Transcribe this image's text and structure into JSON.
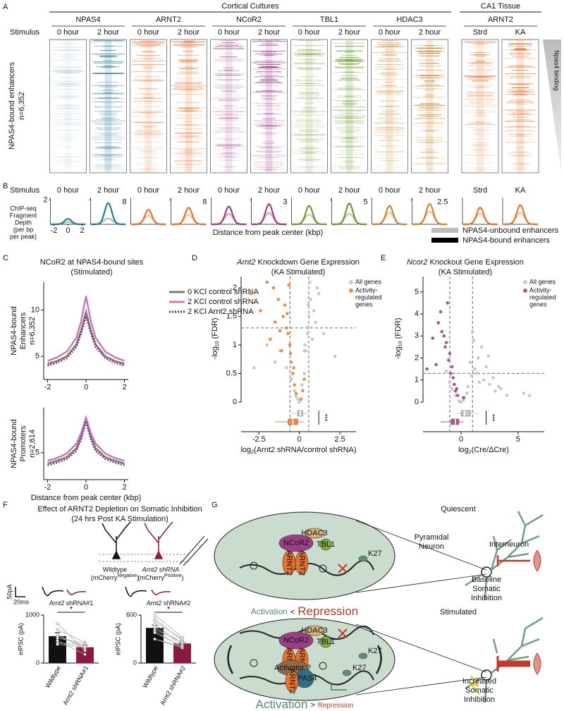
{
  "figure": {
    "panel_letters": [
      "A",
      "B",
      "C",
      "D",
      "E",
      "F",
      "G"
    ],
    "panel_a": {
      "cortical_title": "Cortical Cultures",
      "tissue_title": "CA1 Tissue",
      "factors": [
        "NPAS4",
        "ARNT2",
        "NCoR2",
        "TBL1",
        "HDAC3",
        "ARNT2"
      ],
      "colors": [
        "#2b7b93",
        "#e8732a",
        "#9a3f86",
        "#6c9b2c",
        "#c9862f",
        "#e8732a"
      ],
      "stimulus_label": "Stimulus",
      "columns": [
        "0 hour",
        "2 hour",
        "0 hour",
        "2 hour",
        "0 hour",
        "2 hour",
        "0 hour",
        "2 hour",
        "0 hour",
        "2 hour",
        "Strd",
        "KA"
      ],
      "row_label": "NPAS4-bound enhancers",
      "row_count": "n=6,352",
      "gradient_label": "Npas4 binding"
    },
    "panel_f": {
      "title": "Effect of ARNT2 Depletion on Somatic Inhibition",
      "subtitle": "(24 hrs Post KA Stimulation)",
      "wildtype": "Wildtype",
      "wildtype_marker": [
        "(mCherry",
        "Negative",
        ")"
      ],
      "shrna": "Arnt2 shRNA",
      "shrna_marker": [
        "(mCherry",
        "Positive",
        ")"
      ],
      "scale_y": "50pA",
      "scale_x": "20ms"
    },
    "panel_g": {
      "quiescent": "Quiescent",
      "stimulated": "Stimulated",
      "pyramidal": [
        "Pyramidal",
        "Neuron"
      ],
      "interneuron": "Interneuron",
      "baseline": [
        "Baseline",
        "Somatic",
        "Inhibition"
      ],
      "increased": [
        "Increased",
        "Somatic",
        "Inhibition"
      ],
      "activation": "Activation",
      "less": "<",
      "greater": ">",
      "repression": "Repression",
      "proteins": {
        "hdac3": "HDAC3",
        "ncor2": "NCoR2",
        "tbl1": "TBL1",
        "arnt2": "ARNT2",
        "k27": "K27",
        "npas4": "NPAS4",
        "activator": "Activator ?"
      }
    }
  },
  "chart_data": [
    {
      "type": "line",
      "title": "NCoR2 at NPAS4-bound sites",
      "subtitle": "(Stimulated)",
      "ylabel": [
        "NPAS4-bound",
        "Enhancers",
        "n=6,352"
      ],
      "x": [
        -2,
        -1.5,
        -1,
        -0.5,
        -0.25,
        0,
        0.25,
        0.5,
        1,
        1.5,
        2
      ],
      "xlim": [
        -2.2,
        2.2
      ],
      "xticks": [
        -2,
        0,
        2
      ],
      "ylim": [
        2.5,
        13
      ],
      "yticks": [
        5,
        10
      ],
      "series": [
        {
          "name": "0 KCl control shRNA",
          "color": "#7a7a7a",
          "style": "solid",
          "values": [
            4.2,
            4.5,
            5,
            6.3,
            7.8,
            9.8,
            7.8,
            6.3,
            5,
            4.5,
            4.2
          ]
        },
        {
          "name": "2 KCl control shRNA",
          "color": "#c77bb5",
          "style": "solid",
          "values": [
            4.5,
            4.9,
            5.5,
            7,
            8.8,
            11.5,
            8.8,
            7,
            5.5,
            4.9,
            4.5
          ]
        },
        {
          "name": "2 KCl Arnt2 shRNA",
          "color": "#7e2f70",
          "style": "dotted",
          "values": [
            4,
            4.3,
            4.8,
            6,
            7.5,
            9.3,
            7.5,
            6,
            4.8,
            4.3,
            4
          ]
        }
      ]
    },
    {
      "type": "line",
      "ylabel": [
        "NPAS4-bound",
        "Promoters",
        "n=2,614"
      ],
      "xlabel": "Distance from peak center (kbp)",
      "x": [
        -2,
        -1.5,
        -1,
        -0.5,
        -0.25,
        0,
        0.25,
        0.5,
        1,
        1.5,
        2
      ],
      "xlim": [
        -2.2,
        2.2
      ],
      "xticks": [
        -2,
        0,
        2
      ],
      "ylim": [
        2,
        10
      ],
      "yticks": [
        5
      ],
      "series": [
        {
          "color": "#7a7a7a",
          "style": "solid",
          "values": [
            3.8,
            4.1,
            4.5,
            5.5,
            6.8,
            8.7,
            6.8,
            5.5,
            4.5,
            4.1,
            3.8
          ]
        },
        {
          "color": "#c77bb5",
          "style": "solid",
          "values": [
            4.1,
            4.4,
            4.9,
            6,
            7.2,
            8.9,
            7.2,
            6,
            4.9,
            4.4,
            4.1
          ]
        },
        {
          "color": "#7e2f70",
          "style": "dotted",
          "values": [
            3.6,
            3.9,
            4.3,
            5.2,
            6.5,
            8.5,
            6.5,
            5.2,
            4.3,
            3.9,
            3.6
          ]
        }
      ]
    },
    {
      "type": "volcano",
      "title": [
        "Arnt2",
        " Knockdown Gene Expression"
      ],
      "subtitle": "(KA Stimulated)",
      "ylabel": [
        "-log",
        "10",
        " (FDR)"
      ],
      "xlabel": [
        "log",
        "2",
        "(Arnt2 shRNA/control shRNA)"
      ],
      "xlim": [
        -3.6,
        3.5
      ],
      "xticks": [
        -2.5,
        0,
        2.5
      ],
      "ylim": [
        0,
        2.2
      ],
      "yticks": [
        0,
        0.5,
        1,
        1.5,
        2
      ],
      "thresholds": {
        "x": [
          -0.58,
          0.58
        ],
        "y": 1.3
      },
      "significance": "***",
      "series": [
        {
          "name": "All genes",
          "color": "#c8c8c8",
          "x": [
            -1.2,
            -0.8,
            -0.5,
            -0.3,
            -0.1,
            0,
            0.1,
            0.2,
            0.3,
            0.4,
            0.5,
            0.6,
            0.8,
            1.0,
            1.2,
            1.5,
            -1.5,
            -2,
            0.7,
            0.9,
            1.1,
            0.3,
            0.45,
            0.55,
            -0.2,
            0.15,
            2.2,
            -2.8,
            0.35,
            0.65
          ],
          "values": [
            0.9,
            0.6,
            0.4,
            0.2,
            0.05,
            0,
            0.05,
            0.2,
            0.5,
            0.9,
            1.2,
            1.5,
            1.1,
            1.4,
            1.9,
            1.2,
            0.7,
            1.0,
            1.8,
            1.6,
            2.0,
            0.9,
            1.3,
            1.7,
            0.1,
            0.3,
            0.8,
            0.6,
            1.0,
            2.1
          ],
          "box": [
            -0.5,
            -0.1,
            0.05,
            0.2,
            0.5
          ]
        },
        {
          "name": [
            "Activity-",
            "regulated",
            "genes"
          ],
          "color": "#f08a45",
          "x": [
            -0.3,
            -0.5,
            -0.6,
            -0.8,
            -1.0,
            -1.3,
            -1.6,
            -2.0,
            -2.4,
            -0.7,
            -1.1,
            -0.9,
            -0.4,
            -0.2,
            0.2,
            0.3,
            -1.5,
            -0.65,
            -1.8,
            -0.55,
            -3.0,
            -0.35,
            -0.75,
            -1.2,
            0.1
          ],
          "values": [
            0.3,
            0.7,
            1.0,
            1.3,
            1.5,
            1.8,
            2.0,
            2.1,
            1.6,
            1.2,
            0.9,
            1.7,
            0.5,
            0.15,
            0.2,
            0.4,
            1.4,
            2.05,
            1.1,
            0.85,
            1.9,
            0.6,
            1.55,
            1.25,
            0.05
          ],
          "box": [
            -1.5,
            -0.7,
            -0.4,
            -0.1,
            0.3
          ]
        }
      ]
    },
    {
      "type": "volcano",
      "title": [
        "Ncor2",
        " Knockout Gene Expression"
      ],
      "subtitle": "(KA Stimulated)",
      "ylabel": [
        "-log",
        "10",
        " (FDR)"
      ],
      "xlabel": [
        "log",
        "2",
        "(Cre/ΔCre)"
      ],
      "xlim": [
        -3.35,
        7.3
      ],
      "xticks": [
        0,
        5
      ],
      "ylim": [
        0,
        5.7
      ],
      "yticks": [
        0,
        1,
        2,
        3,
        4,
        5
      ],
      "thresholds": {
        "x": [
          -1,
          1
        ],
        "y": 1.3
      },
      "significance": "***",
      "series": [
        {
          "name": "All genes",
          "color": "#c8c8c8",
          "x": [
            -0.5,
            -0.2,
            0,
            0.3,
            0.6,
            0.9,
            1.2,
            1.5,
            2,
            2.5,
            3,
            3.5,
            4,
            1.8,
            2.2,
            0.8,
            1.1,
            -1.0,
            -1.3,
            1.4,
            2.8,
            0.5,
            3.3,
            1.0,
            -0.8,
            5.5,
            6.0,
            2.4,
            1.6,
            0.2
          ],
          "values": [
            0.3,
            0.05,
            0,
            0.2,
            0.7,
            1.2,
            1.5,
            2.0,
            1.0,
            0.8,
            0.5,
            0.6,
            0.3,
            2.5,
            1.6,
            1.8,
            2.8,
            0.9,
            1.4,
            1.3,
            1.1,
            0.4,
            0.7,
            3.2,
            0.6,
            0.4,
            0.3,
            2.1,
            0.9,
            0.1
          ],
          "box": [
            -0.5,
            0,
            0.3,
            0.8,
            1.6
          ]
        },
        {
          "name": [
            "Activity-",
            "regulated",
            "genes"
          ],
          "color": "#a8588f",
          "x": [
            -0.3,
            -0.6,
            -0.9,
            -1.1,
            -1.4,
            -1.7,
            -2,
            -2.5,
            -1.2,
            -0.8,
            -1.0,
            -1.5,
            -0.5,
            -2.2,
            -1.8,
            -0.7,
            -1.3,
            0.2,
            -3,
            -0.4
          ],
          "values": [
            0.3,
            0.8,
            1.3,
            1.9,
            2.5,
            3.2,
            3.6,
            2.9,
            4.5,
            1.6,
            2.2,
            3.0,
            0.5,
            1.7,
            4.1,
            1.1,
            2.7,
            0.2,
            1.5,
            0.6
          ],
          "box": [
            -1.8,
            -0.9,
            -0.5,
            -0.2,
            0.2
          ]
        }
      ]
    },
    {
      "type": "bar",
      "title": [
        "Arnt2",
        " shRNA#1"
      ],
      "significance": "*",
      "ylabel": "eIPSC (pA)",
      "categories": [
        "Wildtype",
        "Arnt2 shRNA#1"
      ],
      "values": [
        560,
        330
      ],
      "errors": [
        75,
        45
      ],
      "colors": [
        "#111111",
        "#8b1a3e"
      ],
      "pairs": [
        [
          820,
          260
        ],
        [
          700,
          430
        ],
        [
          600,
          300
        ],
        [
          520,
          410
        ],
        [
          470,
          180
        ],
        [
          420,
          380
        ],
        [
          560,
          350
        ],
        [
          390,
          330
        ]
      ],
      "ylim": [
        0,
        1000
      ],
      "yticks": [
        0,
        1000
      ]
    },
    {
      "type": "bar",
      "title": [
        "Arnt2",
        " shRNA#2"
      ],
      "significance": "*",
      "ylabel": "eIPSC (pA)",
      "categories": [
        "Wildtype",
        "Arnt2 shRNA#2"
      ],
      "values": [
        440,
        245
      ],
      "errors": [
        35,
        15
      ],
      "colors": [
        "#111111",
        "#8b1a3e"
      ],
      "pairs": [
        [
          600,
          320
        ],
        [
          550,
          280
        ],
        [
          520,
          300
        ],
        [
          480,
          250
        ],
        [
          450,
          230
        ],
        [
          420,
          260
        ],
        [
          400,
          200
        ],
        [
          380,
          210
        ],
        [
          300,
          190
        ],
        [
          300,
          210
        ]
      ],
      "ylim": [
        0,
        600
      ],
      "yticks": [
        0,
        600
      ]
    },
    {
      "type": "profile-grid",
      "stimulus_label": "Stimulus",
      "ylabel": [
        "ChIP-seq",
        "Fragment",
        "Depth",
        "(per bp",
        "per peak)"
      ],
      "xlabel": "Distance from peak center (kbp)",
      "xlim": [
        -2.5,
        2.5
      ],
      "xticks": [
        -2,
        0,
        2
      ],
      "columns": [
        {
          "label": "0 hour",
          "color": "#2b7b93",
          "ylim": [
            0,
            2.2
          ],
          "yticks": [
            2
          ]
        },
        {
          "label": "2 hour",
          "color": "#2b7b93",
          "ylim": [
            0,
            8.8
          ],
          "yticks": [
            8
          ]
        },
        {
          "label": "0 hour",
          "color": "#e8732a",
          "ylim": [
            0,
            8.8
          ]
        },
        {
          "label": "2 hour",
          "color": "#e8732a",
          "ylim": [
            0,
            8.8
          ],
          "yticks": [
            8
          ]
        },
        {
          "label": "0 hour",
          "color": "#9a3f86",
          "ylim": [
            0,
            3.3
          ]
        },
        {
          "label": "2 hour",
          "color": "#9a3f86",
          "ylim": [
            0,
            3.3
          ],
          "yticks": [
            3
          ]
        },
        {
          "label": "0 hour",
          "color": "#6c9b2c",
          "ylim": [
            0,
            5.5
          ]
        },
        {
          "label": "2 hour",
          "color": "#6c9b2c",
          "ylim": [
            0,
            5.5
          ],
          "yticks": [
            5
          ]
        },
        {
          "label": "0 hour",
          "color": "#c9862f",
          "ylim": [
            0,
            2.75
          ]
        },
        {
          "label": "2 hour",
          "color": "#c9862f",
          "ylim": [
            0,
            2.75
          ],
          "yticks": [
            2.5
          ]
        },
        {
          "label": "Strd",
          "color": "#e8732a",
          "ylim": [
            0,
            8.8
          ]
        },
        {
          "label": "KA",
          "color": "#e8732a",
          "ylim": [
            0,
            8.8
          ]
        }
      ],
      "series": [
        {
          "name": "NPAS4-unbound enhancers",
          "color": "#bdbdbd",
          "values": [
            0.2,
            2,
            2.8,
            3,
            1.3,
            1.4,
            2,
            2.2,
            1.2,
            1.3,
            3.5,
            3.8
          ]
        },
        {
          "name": "NPAS4-bound enhancers",
          "color": "#000000",
          "values": [
            0.45,
            7,
            4.8,
            5.5,
            2.2,
            2.5,
            3.8,
            4.3,
            1.9,
            2.1,
            5.5,
            6.3
          ]
        }
      ]
    }
  ]
}
